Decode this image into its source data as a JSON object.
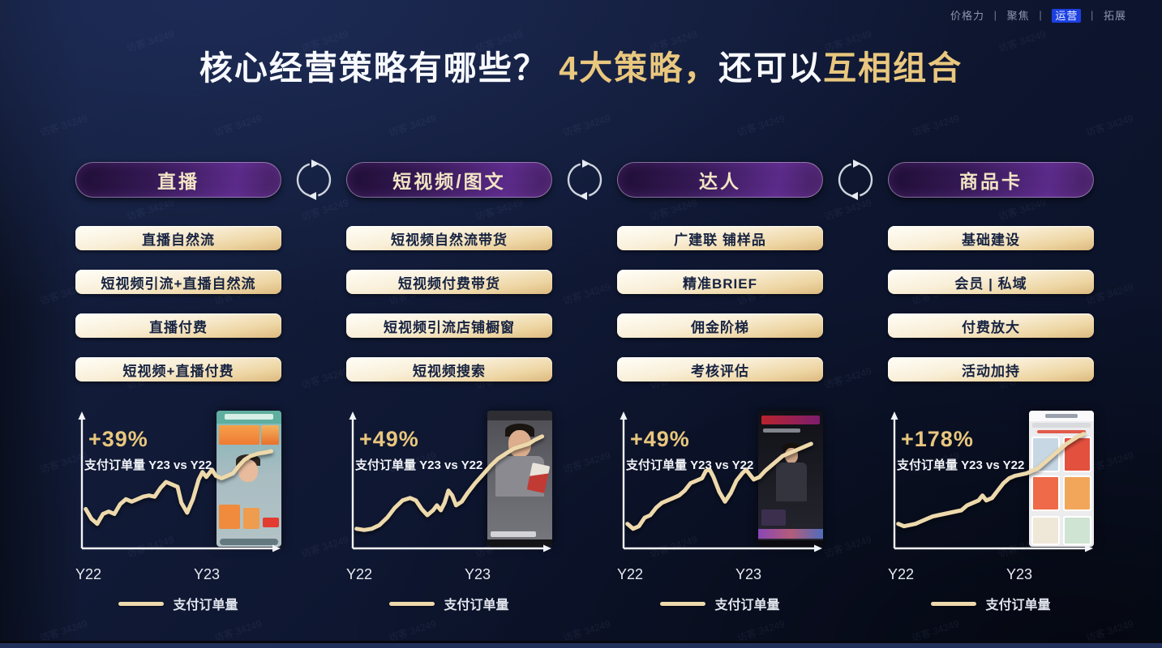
{
  "nav": {
    "separator": "|",
    "items": [
      {
        "label": "价格力",
        "active": false
      },
      {
        "label": "聚焦",
        "active": false
      },
      {
        "label": "运营",
        "active": true
      },
      {
        "label": "拓展",
        "active": false
      }
    ]
  },
  "title": {
    "segments": [
      {
        "text": "核心经营策略有哪些？ ",
        "style": "white"
      },
      {
        "text": "4大策略，",
        "style": "gold"
      },
      {
        "text": "还可以",
        "style": "white"
      },
      {
        "text": "互相组合",
        "style": "gold"
      }
    ]
  },
  "watermark": {
    "text": "访客 34249"
  },
  "columns": [
    {
      "header": "直播",
      "strategies": [
        "直播自然流",
        "短视频引流+直播自然流",
        "直播付费",
        "短视频+直播付费"
      ],
      "screenshot": "livestream-host-with-product-cards"
    },
    {
      "header": "短视频/图文",
      "strategies": [
        "短视频自然流带货",
        "短视频付费带货",
        "短视频引流店铺橱窗",
        "短视频搜索"
      ],
      "screenshot": "short-video-presenter"
    },
    {
      "header": "达人",
      "strategies": [
        "广建联 铺样品",
        "精准BRIEF",
        "佣金阶梯",
        "考核评估"
      ],
      "screenshot": "influencer-livestream-dark"
    },
    {
      "header": "商品卡",
      "strategies": [
        "基础建设",
        "会员 | 私域",
        "付费放大",
        "活动加持"
      ],
      "screenshot": "product-card-feed-grid"
    }
  ],
  "chart_data": [
    {
      "type": "line",
      "growth": "+39%",
      "subtitle": "支付订单量 Y23 vs Y22",
      "x_ticks": [
        "Y22",
        "Y23"
      ],
      "legend": "支付订单量",
      "series": [
        {
          "name": "支付订单量",
          "trend_points": [
            [
              2,
              72
            ],
            [
              5,
              80
            ],
            [
              8,
              84
            ],
            [
              11,
              76
            ],
            [
              14,
              74
            ],
            [
              17,
              76
            ],
            [
              20,
              68
            ],
            [
              23,
              64
            ],
            [
              26,
              66
            ],
            [
              29,
              64
            ],
            [
              32,
              62
            ],
            [
              35,
              61
            ],
            [
              38,
              62
            ],
            [
              41,
              55
            ],
            [
              44,
              50
            ],
            [
              47,
              52
            ],
            [
              50,
              54
            ],
            [
              52,
              67
            ],
            [
              55,
              75
            ],
            [
              58,
              64
            ],
            [
              61,
              48
            ],
            [
              63,
              42
            ],
            [
              65,
              46
            ],
            [
              68,
              40
            ],
            [
              70,
              45
            ],
            [
              73,
              47
            ],
            [
              76,
              45
            ],
            [
              79,
              43
            ],
            [
              82,
              37
            ],
            [
              85,
              32
            ],
            [
              88,
              29
            ],
            [
              92,
              27
            ],
            [
              96,
              26
            ],
            [
              99,
              25
            ]
          ]
        }
      ]
    },
    {
      "type": "line",
      "growth": "+49%",
      "subtitle": "支付订单量 Y23 vs Y22",
      "x_ticks": [
        "Y22",
        "Y23"
      ],
      "legend": "支付订单量",
      "series": [
        {
          "name": "支付订单量",
          "trend_points": [
            [
              2,
              88
            ],
            [
              6,
              89
            ],
            [
              10,
              88
            ],
            [
              14,
              85
            ],
            [
              18,
              79
            ],
            [
              22,
              71
            ],
            [
              26,
              65
            ],
            [
              30,
              63
            ],
            [
              33,
              65
            ],
            [
              36,
              72
            ],
            [
              39,
              77
            ],
            [
              42,
              73
            ],
            [
              44,
              69
            ],
            [
              46,
              73
            ],
            [
              48,
              67
            ],
            [
              50,
              57
            ],
            [
              52,
              61
            ],
            [
              54,
              69
            ],
            [
              57,
              66
            ],
            [
              60,
              59
            ],
            [
              64,
              51
            ],
            [
              68,
              44
            ],
            [
              72,
              37
            ],
            [
              76,
              31
            ],
            [
              80,
              27
            ],
            [
              84,
              23
            ],
            [
              88,
              21
            ],
            [
              92,
              19
            ],
            [
              95,
              16
            ],
            [
              99,
              13
            ]
          ]
        }
      ]
    },
    {
      "type": "line",
      "growth": "+49%",
      "subtitle": "支付订单量 Y23 vs Y22",
      "x_ticks": [
        "Y22",
        "Y23"
      ],
      "legend": "支付订单量",
      "series": [
        {
          "name": "支付订单量",
          "trend_points": [
            [
              2,
              84
            ],
            [
              5,
              88
            ],
            [
              8,
              86
            ],
            [
              11,
              79
            ],
            [
              14,
              77
            ],
            [
              17,
              71
            ],
            [
              20,
              67
            ],
            [
              23,
              65
            ],
            [
              26,
              63
            ],
            [
              29,
              61
            ],
            [
              32,
              57
            ],
            [
              35,
              51
            ],
            [
              38,
              49
            ],
            [
              41,
              47
            ],
            [
              43,
              41
            ],
            [
              45,
              40
            ],
            [
              47,
              46
            ],
            [
              50,
              58
            ],
            [
              53,
              66
            ],
            [
              56,
              59
            ],
            [
              59,
              49
            ],
            [
              62,
              43
            ],
            [
              64,
              40
            ],
            [
              66,
              44
            ],
            [
              68,
              48
            ],
            [
              71,
              46
            ],
            [
              74,
              41
            ],
            [
              77,
              37
            ],
            [
              80,
              33
            ],
            [
              83,
              29
            ],
            [
              86,
              27
            ],
            [
              89,
              25
            ],
            [
              92,
              23
            ],
            [
              95,
              21
            ],
            [
              98,
              19
            ]
          ]
        }
      ]
    },
    {
      "type": "line",
      "growth": "+178%",
      "subtitle": "支付订单量 Y23 vs Y22",
      "x_ticks": [
        "Y22",
        "Y23"
      ],
      "legend": "支付订单量",
      "series": [
        {
          "name": "支付订单量",
          "trend_points": [
            [
              2,
              84
            ],
            [
              5,
              86
            ],
            [
              8,
              85
            ],
            [
              11,
              84
            ],
            [
              14,
              82
            ],
            [
              17,
              80
            ],
            [
              20,
              78
            ],
            [
              23,
              77
            ],
            [
              26,
              76
            ],
            [
              29,
              75
            ],
            [
              32,
              74
            ],
            [
              35,
              73
            ],
            [
              38,
              69
            ],
            [
              41,
              67
            ],
            [
              44,
              65
            ],
            [
              46,
              61
            ],
            [
              48,
              65
            ],
            [
              51,
              63
            ],
            [
              54,
              57
            ],
            [
              57,
              51
            ],
            [
              60,
              47
            ],
            [
              63,
              45
            ],
            [
              66,
              44
            ],
            [
              69,
              43
            ],
            [
              72,
              41
            ],
            [
              75,
              39
            ],
            [
              78,
              35
            ],
            [
              81,
              31
            ],
            [
              84,
              27
            ],
            [
              87,
              23
            ],
            [
              90,
              19
            ],
            [
              93,
              16
            ],
            [
              96,
              13
            ],
            [
              99,
              11
            ]
          ]
        }
      ]
    }
  ],
  "colors": {
    "gold_accent": "#e9c77e",
    "trend_line": "#edd9ab",
    "nav_active_bg": "#1c3fe2",
    "pill_purple": "#5c2b8a",
    "button_gold": "#dcb97e",
    "background": "#0e1630"
  }
}
